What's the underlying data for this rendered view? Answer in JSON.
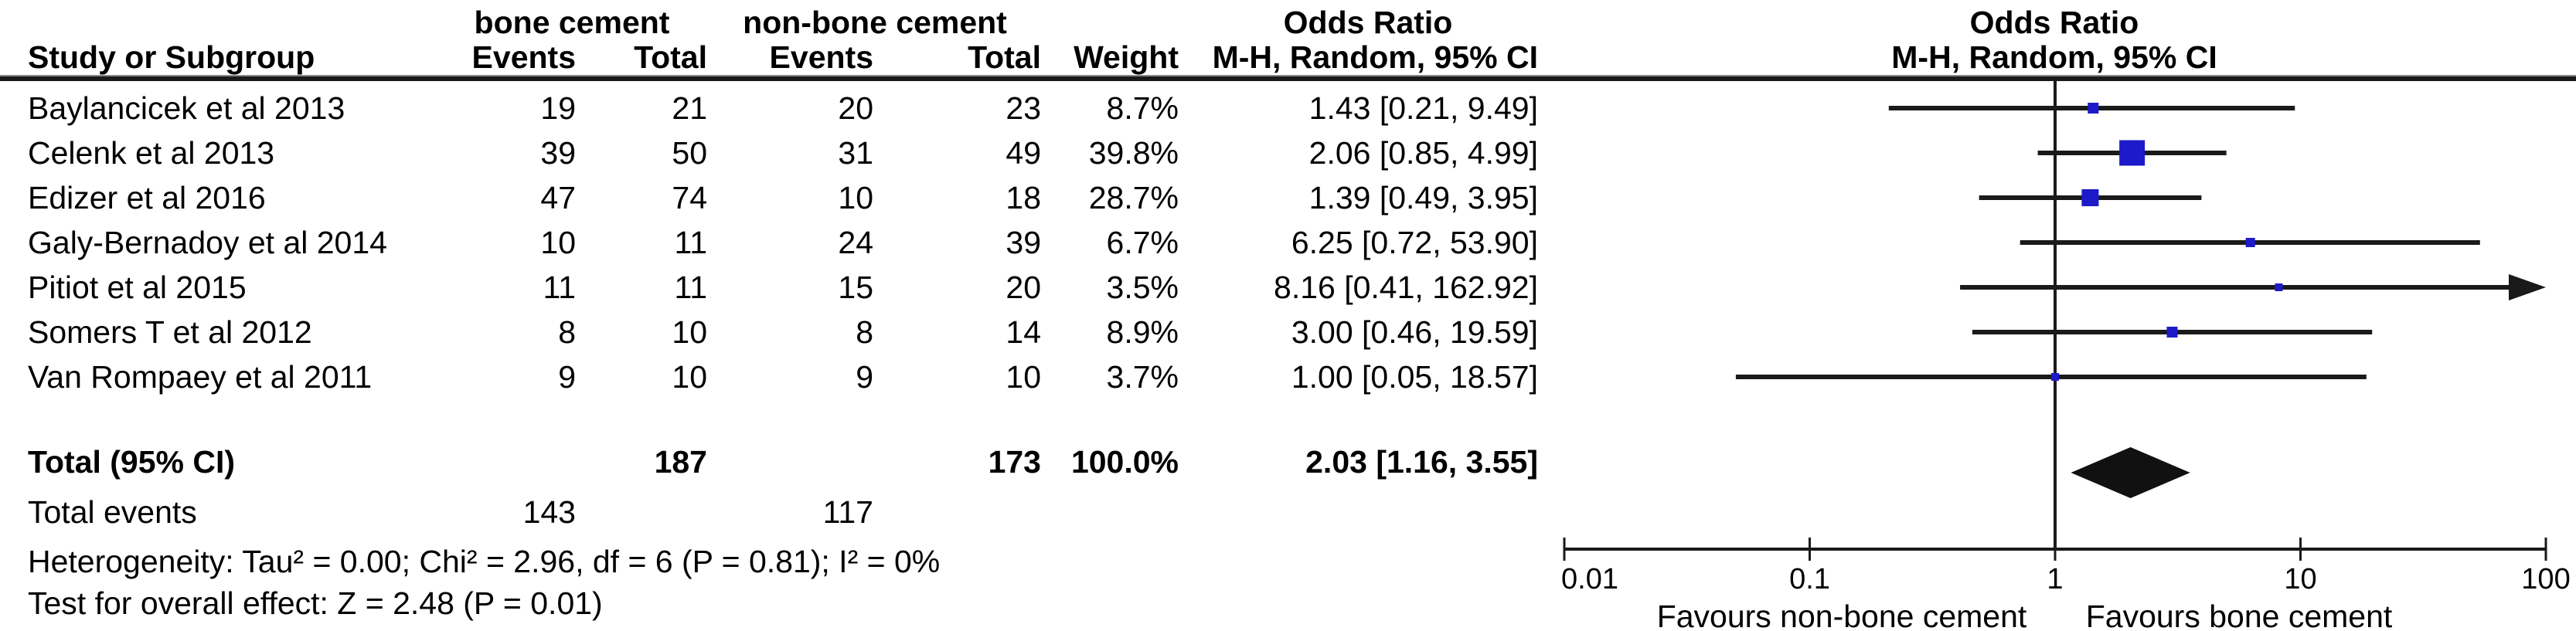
{
  "table": {
    "group1_header": "bone cement",
    "group2_header": "non-bone cement",
    "or_col_header_line1": "Odds Ratio",
    "or_col_header_line2": "M-H, Random, 95% CI",
    "plot_header_line1": "Odds Ratio",
    "plot_header_line2": "M-H, Random, 95% CI",
    "columns": {
      "study": "Study or Subgroup",
      "events1": "Events",
      "total1": "Total",
      "events2": "Events",
      "total2": "Total",
      "weight": "Weight"
    },
    "rows": [
      {
        "study": "Baylancicek et al 2013",
        "events1": "19",
        "total1": "21",
        "events2": "20",
        "total2": "23",
        "weight": "8.7%",
        "or_ci": "1.43 [0.21, 9.49]"
      },
      {
        "study": "Celenk et al 2013",
        "events1": "39",
        "total1": "50",
        "events2": "31",
        "total2": "49",
        "weight": "39.8%",
        "or_ci": "2.06 [0.85, 4.99]"
      },
      {
        "study": "Edizer et al 2016",
        "events1": "47",
        "total1": "74",
        "events2": "10",
        "total2": "18",
        "weight": "28.7%",
        "or_ci": "1.39 [0.49, 3.95]"
      },
      {
        "study": "Galy-Bernadoy et al 2014",
        "events1": "10",
        "total1": "11",
        "events2": "24",
        "total2": "39",
        "weight": "6.7%",
        "or_ci": "6.25 [0.72, 53.90]"
      },
      {
        "study": "Pitiot et al 2015",
        "events1": "11",
        "total1": "11",
        "events2": "15",
        "total2": "20",
        "weight": "3.5%",
        "or_ci": "8.16 [0.41, 162.92]"
      },
      {
        "study": "Somers T et al 2012",
        "events1": "8",
        "total1": "10",
        "events2": "8",
        "total2": "14",
        "weight": "8.9%",
        "or_ci": "3.00 [0.46, 19.59]"
      },
      {
        "study": "Van Rompaey et al 2011",
        "events1": "9",
        "total1": "10",
        "events2": "9",
        "total2": "10",
        "weight": "3.7%",
        "or_ci": "1.00 [0.05, 18.57]"
      }
    ],
    "total_row": {
      "label": "Total (95% CI)",
      "total1": "187",
      "total2": "173",
      "weight": "100.0%",
      "or_ci": "2.03 [1.16, 3.55]"
    },
    "total_events_row": {
      "label": "Total events",
      "events1": "143",
      "events2": "117"
    },
    "heterogeneity": "Heterogeneity: Tau² = 0.00; Chi² = 2.96, df = 6 (P = 0.81); I² = 0%",
    "overall_effect": "Test for overall effect: Z = 2.48 (P = 0.01)"
  },
  "chart_data": {
    "type": "forest",
    "effect_measure": "Odds Ratio, M-H, Random, 95% CI",
    "scale": "log10",
    "axis_range": [
      0.01,
      100
    ],
    "axis_ticks": [
      0.01,
      0.1,
      1,
      10,
      100
    ],
    "axis_tick_labels": [
      "0.01",
      "0.1",
      "1",
      "10",
      "100"
    ],
    "null_line_value": 1,
    "xlabel_left": "Favours non-bone cement",
    "xlabel_right": "Favours bone cement",
    "studies": [
      {
        "name": "Baylancicek et al 2013",
        "or": 1.43,
        "ci_low": 0.21,
        "ci_high": 9.49,
        "weight_pct": 8.7
      },
      {
        "name": "Celenk et al 2013",
        "or": 2.06,
        "ci_low": 0.85,
        "ci_high": 4.99,
        "weight_pct": 39.8
      },
      {
        "name": "Edizer et al 2016",
        "or": 1.39,
        "ci_low": 0.49,
        "ci_high": 3.95,
        "weight_pct": 28.7
      },
      {
        "name": "Galy-Bernadoy et al 2014",
        "or": 6.25,
        "ci_low": 0.72,
        "ci_high": 53.9,
        "weight_pct": 6.7
      },
      {
        "name": "Pitiot et al 2015",
        "or": 8.16,
        "ci_low": 0.41,
        "ci_high": 162.92,
        "weight_pct": 3.5
      },
      {
        "name": "Somers T et al 2012",
        "or": 3.0,
        "ci_low": 0.46,
        "ci_high": 19.59,
        "weight_pct": 8.9
      },
      {
        "name": "Van Rompaey et al 2011",
        "or": 1.0,
        "ci_low": 0.05,
        "ci_high": 18.57,
        "weight_pct": 3.7
      }
    ],
    "total": {
      "or": 2.03,
      "ci_low": 1.16,
      "ci_high": 3.55
    },
    "marker_color": "#1d1ac9",
    "line_color": "#1a1a1a"
  }
}
